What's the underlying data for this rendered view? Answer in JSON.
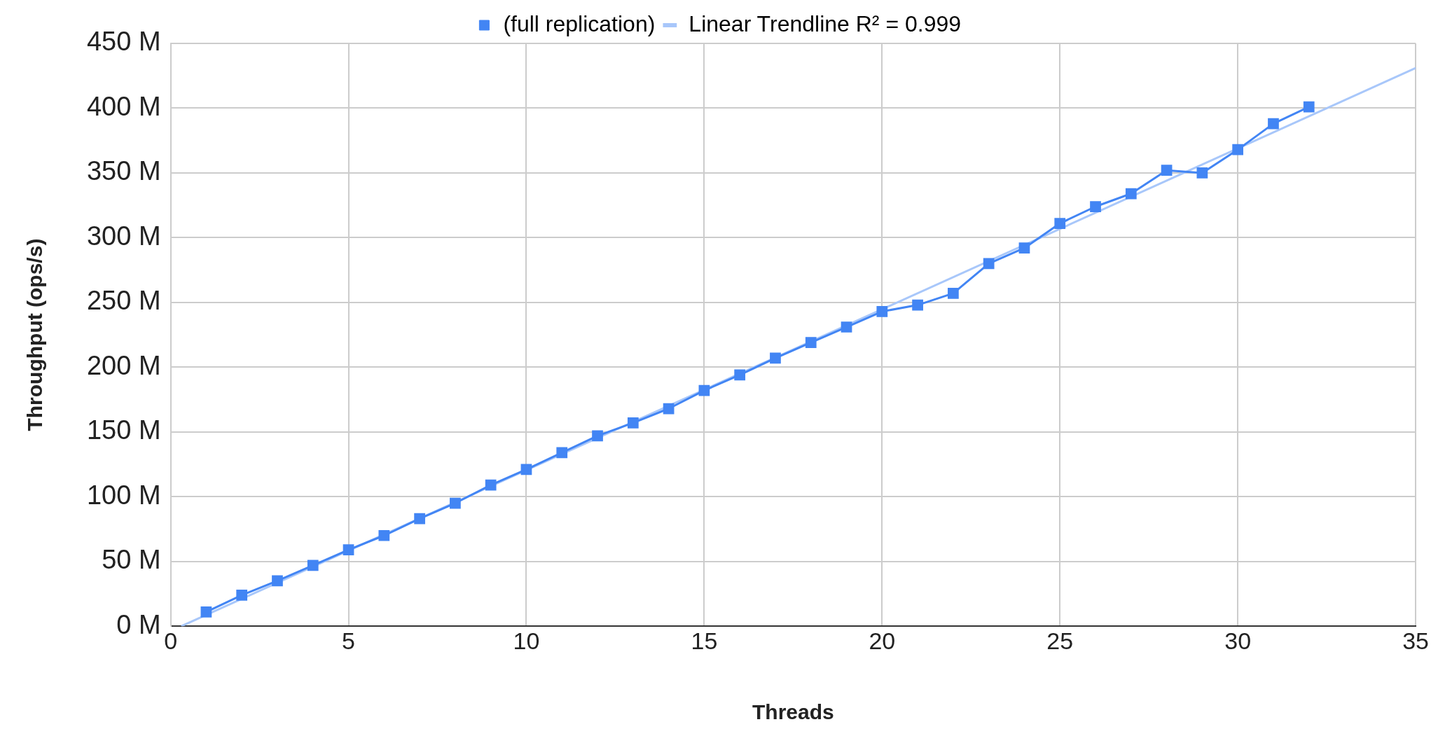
{
  "chart_data": {
    "type": "line",
    "xlabel": "Threads",
    "ylabel": "Throughput (ops/s)",
    "xlim": [
      0,
      35
    ],
    "xticks": [
      0,
      5,
      10,
      15,
      20,
      25,
      30,
      35
    ],
    "ylim": [
      0,
      450
    ],
    "yticks": [
      {
        "value": 0,
        "label": "0 M"
      },
      {
        "value": 50,
        "label": "50 M"
      },
      {
        "value": 100,
        "label": "100 M"
      },
      {
        "value": 150,
        "label": "150 M"
      },
      {
        "value": 200,
        "label": "200 M"
      },
      {
        "value": 250,
        "label": "250 M"
      },
      {
        "value": 300,
        "label": "300 M"
      },
      {
        "value": 350,
        "label": "350 M"
      },
      {
        "value": 400,
        "label": "400 M"
      },
      {
        "value": 450,
        "label": "450 M"
      }
    ],
    "grid": true,
    "legend": "top",
    "marker": "square",
    "line_style": "solid",
    "series": [
      {
        "name": "(full replication)",
        "color": "#4285f4",
        "x": [
          1,
          2,
          3,
          4,
          5,
          6,
          7,
          8,
          9,
          10,
          11,
          12,
          13,
          14,
          15,
          16,
          17,
          18,
          19,
          20,
          21,
          22,
          23,
          24,
          25,
          26,
          27,
          28,
          29,
          30,
          31,
          32
        ],
        "values": [
          11,
          24,
          35,
          47,
          59,
          70,
          83,
          95,
          109,
          121,
          134,
          147,
          157,
          168,
          182,
          194,
          207,
          219,
          231,
          243,
          248,
          257,
          280,
          292,
          311,
          324,
          334,
          352,
          350,
          368,
          388,
          401
        ]
      },
      {
        "name": "Linear Trendline R² = 0.999",
        "color": "#a8c7fa",
        "marker": "none",
        "x": [
          0.3,
          35
        ],
        "values": [
          0,
          431
        ]
      }
    ]
  }
}
